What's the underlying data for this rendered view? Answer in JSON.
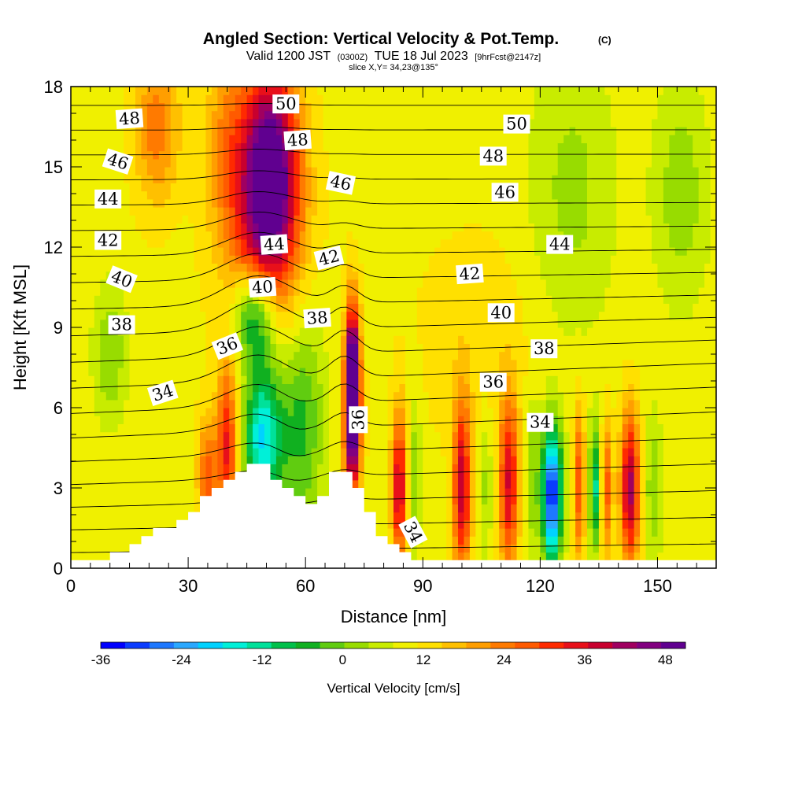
{
  "chart_data": {
    "type": "heatmap",
    "title": "Angled Section: Vertical Velocity & Pot.Temp.",
    "title_units": "(C)",
    "subtitle_valid": "Valid 1200 JST",
    "subtitle_z": "(0300Z)",
    "subtitle_date": "TUE 18 Jul 2023",
    "subtitle_fcst": "[9hrFcst@2147z]",
    "slice_label": "slice X,Y= 34,23@135°",
    "xlabel": "Distance [nm]",
    "ylabel": "Height [Kft MSL]",
    "xlim": [
      0,
      165
    ],
    "ylim": [
      0,
      18
    ],
    "x_ticks": [
      0,
      30,
      60,
      90,
      120,
      150
    ],
    "y_ticks": [
      0,
      3,
      6,
      9,
      12,
      15,
      18
    ],
    "colorbar": {
      "label": "Vertical Velocity [cm/s]",
      "min": -36,
      "max": 51,
      "step": 3,
      "ticks": [
        -36,
        -24,
        -12,
        0,
        12,
        24,
        36,
        48
      ],
      "colors": [
        "#0000ff",
        "#0a3cff",
        "#1e78ff",
        "#2aa8ff",
        "#00d2ff",
        "#00f0d8",
        "#00e19a",
        "#00c04a",
        "#10b020",
        "#60cc10",
        "#98dc00",
        "#c8ec00",
        "#f0f000",
        "#ffe000",
        "#ffc000",
        "#ff9e00",
        "#ff7a00",
        "#ff5a00",
        "#ff2a00",
        "#e8101a",
        "#c8002e",
        "#a00060",
        "#820080",
        "#600090"
      ]
    },
    "terrain": [
      [
        0,
        0.3
      ],
      [
        10,
        0.3
      ],
      [
        10,
        0.6
      ],
      [
        15,
        0.6
      ],
      [
        15,
        0.9
      ],
      [
        18,
        0.9
      ],
      [
        18,
        1.2
      ],
      [
        21,
        1.2
      ],
      [
        21,
        1.5
      ],
      [
        27,
        1.5
      ],
      [
        27,
        1.8
      ],
      [
        30,
        1.8
      ],
      [
        30,
        2.1
      ],
      [
        33,
        2.1
      ],
      [
        33,
        2.7
      ],
      [
        36,
        2.7
      ],
      [
        36,
        3.0
      ],
      [
        39,
        3.0
      ],
      [
        39,
        3.3
      ],
      [
        42,
        3.3
      ],
      [
        42,
        3.6
      ],
      [
        45,
        3.6
      ],
      [
        45,
        3.9
      ],
      [
        51,
        3.9
      ],
      [
        51,
        3.3
      ],
      [
        54,
        3.3
      ],
      [
        54,
        3.0
      ],
      [
        57,
        3.0
      ],
      [
        57,
        2.7
      ],
      [
        60,
        2.7
      ],
      [
        60,
        2.4
      ],
      [
        63,
        2.4
      ],
      [
        63,
        2.7
      ],
      [
        66,
        2.7
      ],
      [
        66,
        3.6
      ],
      [
        72,
        3.6
      ],
      [
        72,
        3.0
      ],
      [
        75,
        3.0
      ],
      [
        75,
        2.1
      ],
      [
        78,
        2.1
      ],
      [
        78,
        1.2
      ],
      [
        81,
        1.2
      ],
      [
        81,
        0.9
      ],
      [
        84,
        0.9
      ],
      [
        84,
        0.6
      ],
      [
        87,
        0.6
      ],
      [
        87,
        0.3
      ],
      [
        165,
        0.3
      ]
    ],
    "blobs": [
      {
        "x": 51,
        "y": 15.0,
        "sx": 5,
        "sy": 2.8,
        "w": 33
      },
      {
        "x": 49,
        "y": 12.0,
        "sx": 7,
        "sy": 3.0,
        "w": 14
      },
      {
        "x": 22,
        "y": 16.5,
        "sx": 4,
        "sy": 2.0,
        "w": 12
      },
      {
        "x": 40,
        "y": 16.0,
        "sx": 4,
        "sy": 2.5,
        "w": 9
      },
      {
        "x": 72,
        "y": 7.0,
        "sx": 1.3,
        "sy": 2.0,
        "w": 44
      },
      {
        "x": 72,
        "y": 4.8,
        "sx": 1.5,
        "sy": 1.7,
        "w": 18
      },
      {
        "x": 49,
        "y": 5.0,
        "sx": 3.5,
        "sy": 2.0,
        "w": -24
      },
      {
        "x": 47,
        "y": 9.5,
        "sx": 4.0,
        "sy": 1.3,
        "w": -22
      },
      {
        "x": 59,
        "y": 5.5,
        "sx": 4.0,
        "sy": 3.0,
        "w": -12
      },
      {
        "x": 40,
        "y": 4.5,
        "sx": 1.8,
        "sy": 2.2,
        "w": 20
      },
      {
        "x": 35,
        "y": 3.5,
        "sx": 1.8,
        "sy": 1.5,
        "w": 14
      },
      {
        "x": 84,
        "y": 3.0,
        "sx": 1.3,
        "sy": 2.0,
        "w": 24
      },
      {
        "x": 88,
        "y": 3.5,
        "sx": 1.2,
        "sy": 2.0,
        "w": -8
      },
      {
        "x": 100,
        "y": 3.0,
        "sx": 1.6,
        "sy": 2.3,
        "w": 24
      },
      {
        "x": 106,
        "y": 3.2,
        "sx": 1.3,
        "sy": 2.0,
        "w": -6
      },
      {
        "x": 112,
        "y": 3.2,
        "sx": 1.7,
        "sy": 2.3,
        "w": 22
      },
      {
        "x": 118,
        "y": 3.5,
        "sx": 1.2,
        "sy": 2.0,
        "w": -8
      },
      {
        "x": 123,
        "y": 2.8,
        "sx": 1.8,
        "sy": 1.8,
        "w": -36
      },
      {
        "x": 130,
        "y": 3.2,
        "sx": 1.0,
        "sy": 2.0,
        "w": 16
      },
      {
        "x": 134,
        "y": 3.0,
        "sx": 1.0,
        "sy": 1.6,
        "w": -18
      },
      {
        "x": 137,
        "y": 3.0,
        "sx": 1.0,
        "sy": 1.8,
        "w": 14
      },
      {
        "x": 143,
        "y": 3.0,
        "sx": 1.7,
        "sy": 2.0,
        "w": 27
      },
      {
        "x": 149,
        "y": 3.0,
        "sx": 1.5,
        "sy": 2.0,
        "w": -8
      },
      {
        "x": 10,
        "y": 8.0,
        "sx": 3.0,
        "sy": 1.8,
        "w": -8
      },
      {
        "x": 128,
        "y": 14.0,
        "sx": 8.0,
        "sy": 4.0,
        "w": -6
      },
      {
        "x": 156,
        "y": 14.0,
        "sx": 5.0,
        "sy": 3.0,
        "w": -7
      },
      {
        "x": 105,
        "y": 8.5,
        "sx": 12.0,
        "sy": 3.0,
        "w": 3
      }
    ],
    "isentropes_start": 29,
    "isentropes_end": 52,
    "theta_labels": [
      {
        "text": "48",
        "x": 15,
        "y": 16.8,
        "rot": -4
      },
      {
        "text": "46",
        "x": 12,
        "y": 15.2,
        "rot": 18
      },
      {
        "text": "44",
        "x": 9.5,
        "y": 13.8,
        "rot": 0
      },
      {
        "text": "42",
        "x": 9.5,
        "y": 12.25,
        "rot": 0
      },
      {
        "text": "40",
        "x": 13,
        "y": 10.8,
        "rot": 22
      },
      {
        "text": "38",
        "x": 13,
        "y": 9.1,
        "rot": 0
      },
      {
        "text": "36",
        "x": 40,
        "y": 8.3,
        "rot": -22
      },
      {
        "text": "34",
        "x": 23.5,
        "y": 6.55,
        "rot": -18
      },
      {
        "text": "50",
        "x": 55,
        "y": 17.35,
        "rot": 0
      },
      {
        "text": "48",
        "x": 58,
        "y": 16.0,
        "rot": -4
      },
      {
        "text": "46",
        "x": 69,
        "y": 14.4,
        "rot": 12
      },
      {
        "text": "44",
        "x": 52,
        "y": 12.1,
        "rot": -4
      },
      {
        "text": "42",
        "x": 66,
        "y": 11.6,
        "rot": -14
      },
      {
        "text": "40",
        "x": 49,
        "y": 10.5,
        "rot": -4
      },
      {
        "text": "38",
        "x": 63,
        "y": 9.35,
        "rot": -4
      },
      {
        "text": "36",
        "x": 73.5,
        "y": 5.55,
        "rot": -90
      },
      {
        "text": "34",
        "x": 87.5,
        "y": 1.35,
        "rot": 62
      },
      {
        "text": "50",
        "x": 114,
        "y": 16.6,
        "rot": 0
      },
      {
        "text": "48",
        "x": 108,
        "y": 15.4,
        "rot": 0
      },
      {
        "text": "46",
        "x": 111,
        "y": 14.05,
        "rot": 0
      },
      {
        "text": "44",
        "x": 125,
        "y": 12.1,
        "rot": 0
      },
      {
        "text": "42",
        "x": 102,
        "y": 11.0,
        "rot": -4
      },
      {
        "text": "40",
        "x": 110,
        "y": 9.55,
        "rot": 0
      },
      {
        "text": "38",
        "x": 121,
        "y": 8.2,
        "rot": 0
      },
      {
        "text": "36",
        "x": 108,
        "y": 6.95,
        "rot": 0
      },
      {
        "text": "34",
        "x": 120,
        "y": 5.45,
        "rot": 0
      }
    ]
  }
}
